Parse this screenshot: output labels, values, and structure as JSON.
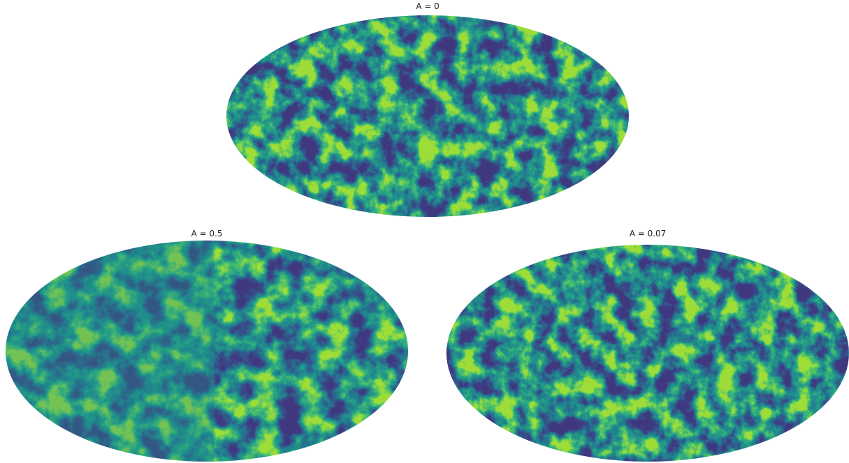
{
  "panels": [
    {
      "title": "A = 0"
    },
    {
      "title": "A = 0.5"
    },
    {
      "title": "A = 0.07"
    }
  ]
}
